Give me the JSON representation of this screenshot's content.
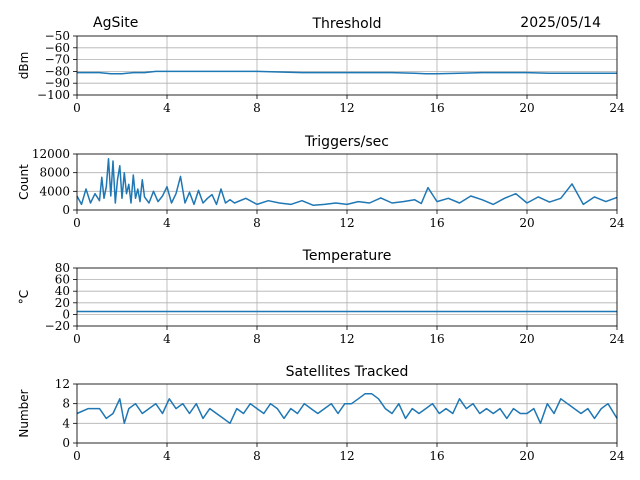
{
  "header": {
    "site": "AgSite",
    "date": "2025/05/14"
  },
  "colors": {
    "series": "#1f77b4"
  },
  "chart_data": [
    {
      "type": "line",
      "title": "Threshold",
      "ylabel": "dBm",
      "xlim": [
        0,
        24
      ],
      "ylim": [
        -100,
        -50
      ],
      "xticks": [
        0,
        4,
        8,
        12,
        16,
        20,
        24
      ],
      "yticks": [
        -100,
        -90,
        -80,
        -70,
        -60,
        -50
      ],
      "ytick_labels": [
        "−100",
        "−90",
        "−80",
        "−70",
        "−60",
        "−50"
      ],
      "grid": true,
      "x": [
        0,
        0.5,
        1,
        1.5,
        2,
        2.5,
        3,
        3.5,
        4,
        4.5,
        5,
        5.5,
        6,
        7,
        8,
        9,
        10,
        11,
        12,
        13,
        14,
        15,
        15.5,
        16,
        17,
        18,
        19,
        20,
        21,
        22,
        23,
        24
      ],
      "y": [
        -81,
        -81,
        -81,
        -82,
        -82,
        -81,
        -81,
        -80,
        -80,
        -80,
        -80,
        -80,
        -80,
        -80,
        -80,
        -80.5,
        -81,
        -81,
        -81,
        -81,
        -81,
        -81.5,
        -82,
        -82,
        -81.5,
        -81,
        -81,
        -81,
        -81.5,
        -81.5,
        -81.5,
        -81.5
      ]
    },
    {
      "type": "line",
      "title": "Triggers/sec",
      "ylabel": "Count",
      "xlim": [
        0,
        24
      ],
      "ylim": [
        0,
        12000
      ],
      "xticks": [
        0,
        4,
        8,
        12,
        16,
        20,
        24
      ],
      "yticks": [
        0,
        4000,
        8000,
        12000
      ],
      "ytick_labels": [
        "0",
        "4000",
        "8000",
        "12000"
      ],
      "grid": true,
      "x": [
        0,
        0.2,
        0.4,
        0.6,
        0.8,
        1,
        1.1,
        1.2,
        1.3,
        1.4,
        1.5,
        1.6,
        1.7,
        1.8,
        1.9,
        2,
        2.1,
        2.2,
        2.3,
        2.4,
        2.5,
        2.6,
        2.7,
        2.8,
        2.9,
        3,
        3.2,
        3.4,
        3.6,
        3.8,
        4,
        4.2,
        4.4,
        4.6,
        4.8,
        5,
        5.2,
        5.4,
        5.6,
        5.8,
        6,
        6.2,
        6.4,
        6.6,
        6.8,
        7,
        7.5,
        8,
        8.5,
        9,
        9.5,
        10,
        10.5,
        11,
        11.5,
        12,
        12.5,
        13,
        13.5,
        14,
        14.5,
        15,
        15.3,
        15.6,
        16,
        16.5,
        17,
        17.5,
        18,
        18.5,
        19,
        19.5,
        20,
        20.5,
        21,
        21.5,
        22,
        22.5,
        23,
        23.5,
        24
      ],
      "y": [
        3000,
        1200,
        4500,
        1500,
        3500,
        2000,
        7000,
        2500,
        5000,
        11000,
        3000,
        10500,
        1500,
        6500,
        9500,
        2500,
        8000,
        3500,
        5500,
        1500,
        7500,
        2500,
        4500,
        1800,
        6500,
        2800,
        1500,
        4000,
        1800,
        3000,
        5000,
        1500,
        3500,
        7200,
        1500,
        3800,
        1200,
        4200,
        1500,
        2500,
        3300,
        1200,
        4500,
        1500,
        2200,
        1500,
        2500,
        1200,
        2000,
        1500,
        1200,
        2000,
        1000,
        1200,
        1500,
        1200,
        1800,
        1500,
        2600,
        1500,
        1800,
        2200,
        1400,
        4800,
        1800,
        2500,
        1500,
        3000,
        2200,
        1200,
        2500,
        3500,
        1500,
        2800,
        1700,
        2500,
        5600,
        1200,
        2800,
        1800,
        2700
      ]
    },
    {
      "type": "line",
      "title": "Temperature",
      "ylabel": "°C",
      "xlim": [
        0,
        24
      ],
      "ylim": [
        -20,
        80
      ],
      "xticks": [
        0,
        4,
        8,
        12,
        16,
        20,
        24
      ],
      "yticks": [
        -20,
        0,
        20,
        40,
        60,
        80
      ],
      "ytick_labels": [
        "−20",
        "0",
        "20",
        "40",
        "60",
        "80"
      ],
      "grid": true,
      "x": [
        0,
        24
      ],
      "y": [
        5,
        5
      ]
    },
    {
      "type": "line",
      "title": "Satellites Tracked",
      "ylabel": "Number",
      "xlim": [
        0,
        24
      ],
      "ylim": [
        0,
        12
      ],
      "xticks": [
        0,
        4,
        8,
        12,
        16,
        20,
        24
      ],
      "yticks": [
        0,
        4,
        8,
        12
      ],
      "ytick_labels": [
        "0",
        "4",
        "8",
        "12"
      ],
      "grid": true,
      "x": [
        0,
        0.5,
        1,
        1.3,
        1.6,
        1.9,
        2.1,
        2.3,
        2.6,
        2.9,
        3.2,
        3.5,
        3.8,
        4.1,
        4.4,
        4.7,
        5,
        5.3,
        5.6,
        5.9,
        6.2,
        6.5,
        6.8,
        7.1,
        7.4,
        7.7,
        8,
        8.3,
        8.6,
        8.9,
        9.2,
        9.5,
        9.8,
        10.1,
        10.4,
        10.7,
        11,
        11.3,
        11.6,
        11.9,
        12.2,
        12.5,
        12.8,
        13.1,
        13.4,
        13.7,
        14,
        14.3,
        14.6,
        14.9,
        15.2,
        15.5,
        15.8,
        16.1,
        16.4,
        16.7,
        17,
        17.3,
        17.6,
        17.9,
        18.2,
        18.5,
        18.8,
        19.1,
        19.4,
        19.7,
        20,
        20.3,
        20.6,
        20.9,
        21.2,
        21.5,
        21.8,
        22.1,
        22.4,
        22.7,
        23,
        23.3,
        23.6,
        24
      ],
      "y": [
        6,
        7,
        7,
        5,
        6,
        9,
        4,
        7,
        8,
        6,
        7,
        8,
        6,
        9,
        7,
        8,
        6,
        8,
        5,
        7,
        6,
        5,
        4,
        7,
        6,
        8,
        7,
        6,
        8,
        7,
        5,
        7,
        6,
        8,
        7,
        6,
        7,
        8,
        6,
        8,
        8,
        9,
        10,
        10,
        9,
        7,
        6,
        8,
        5,
        7,
        6,
        7,
        8,
        6,
        7,
        6,
        9,
        7,
        8,
        6,
        7,
        6,
        7,
        5,
        7,
        6,
        6,
        7,
        4,
        8,
        6,
        9,
        8,
        7,
        6,
        7,
        5,
        7,
        8,
        5
      ]
    }
  ]
}
